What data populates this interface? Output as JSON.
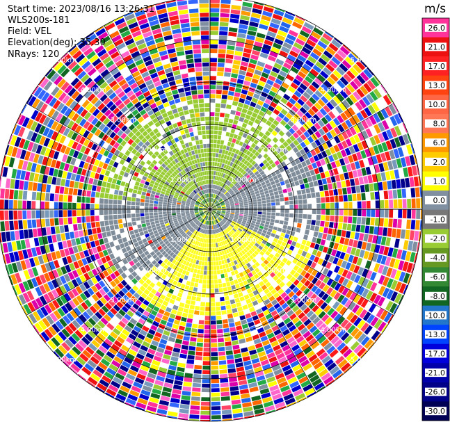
{
  "header": {
    "start_time": "Start time: 2023/08/16 13:26:31",
    "instrument": "WLS200s-181",
    "field": "Field: VEL",
    "elevation": "Elevation(deg): 35.30",
    "nrays": "NRays: 120"
  },
  "chart_data": {
    "type": "ppi",
    "field": "VEL",
    "units": "m/s",
    "nrays": 120,
    "elevation_deg": 35.3,
    "range_rings_km": [
      1.0,
      2.0,
      3.0,
      4.0,
      5.0
    ],
    "range_ring_labels": [
      "1.00km",
      "2.00km",
      "3.00km",
      "4.00km",
      "5.00km"
    ],
    "spoke_step_deg": 30,
    "colorbar": {
      "title": "m/s",
      "min": -30.0,
      "max": 30.0,
      "ticks": [
        "26.0",
        "21.0",
        "17.0",
        "13.0",
        "10.0",
        "8.0",
        "6.0",
        "2.0",
        "1.0",
        "0.0",
        "-1.0",
        "-2.0",
        "-4.0",
        "-6.0",
        "-8.0",
        "-10.0",
        "-13.0",
        "-17.0",
        "-21.0",
        "-26.0",
        "-30.0"
      ],
      "colors": [
        "#ff3399",
        "#ee1111",
        "#ff2222",
        "#ff4411",
        "#ff6644",
        "#ff7755",
        "#ff9900",
        "#ffcc00",
        "#ffff00",
        "#8090a0",
        "#777777",
        "#99cc33",
        "#669922",
        "#338833",
        "#116622",
        "#2277cc",
        "#0044ff",
        "#0000dd",
        "#0000aa",
        "#000088",
        "#000055"
      ]
    },
    "regions": [
      {
        "from_km": 0.0,
        "to_km": 0.3,
        "description": "near-zero",
        "palette": [
          "#2e8b57",
          "#228833",
          "#99cc33",
          "#ffff00"
        ]
      },
      {
        "from_km": 0.3,
        "to_km": 1.5,
        "pattern": "dipole"
      },
      {
        "from_km": 1.5,
        "to_km": 2.6,
        "pattern": "dipole-sparse"
      },
      {
        "from_km": 2.6,
        "to_km": 6.0,
        "pattern": "noise"
      }
    ]
  }
}
